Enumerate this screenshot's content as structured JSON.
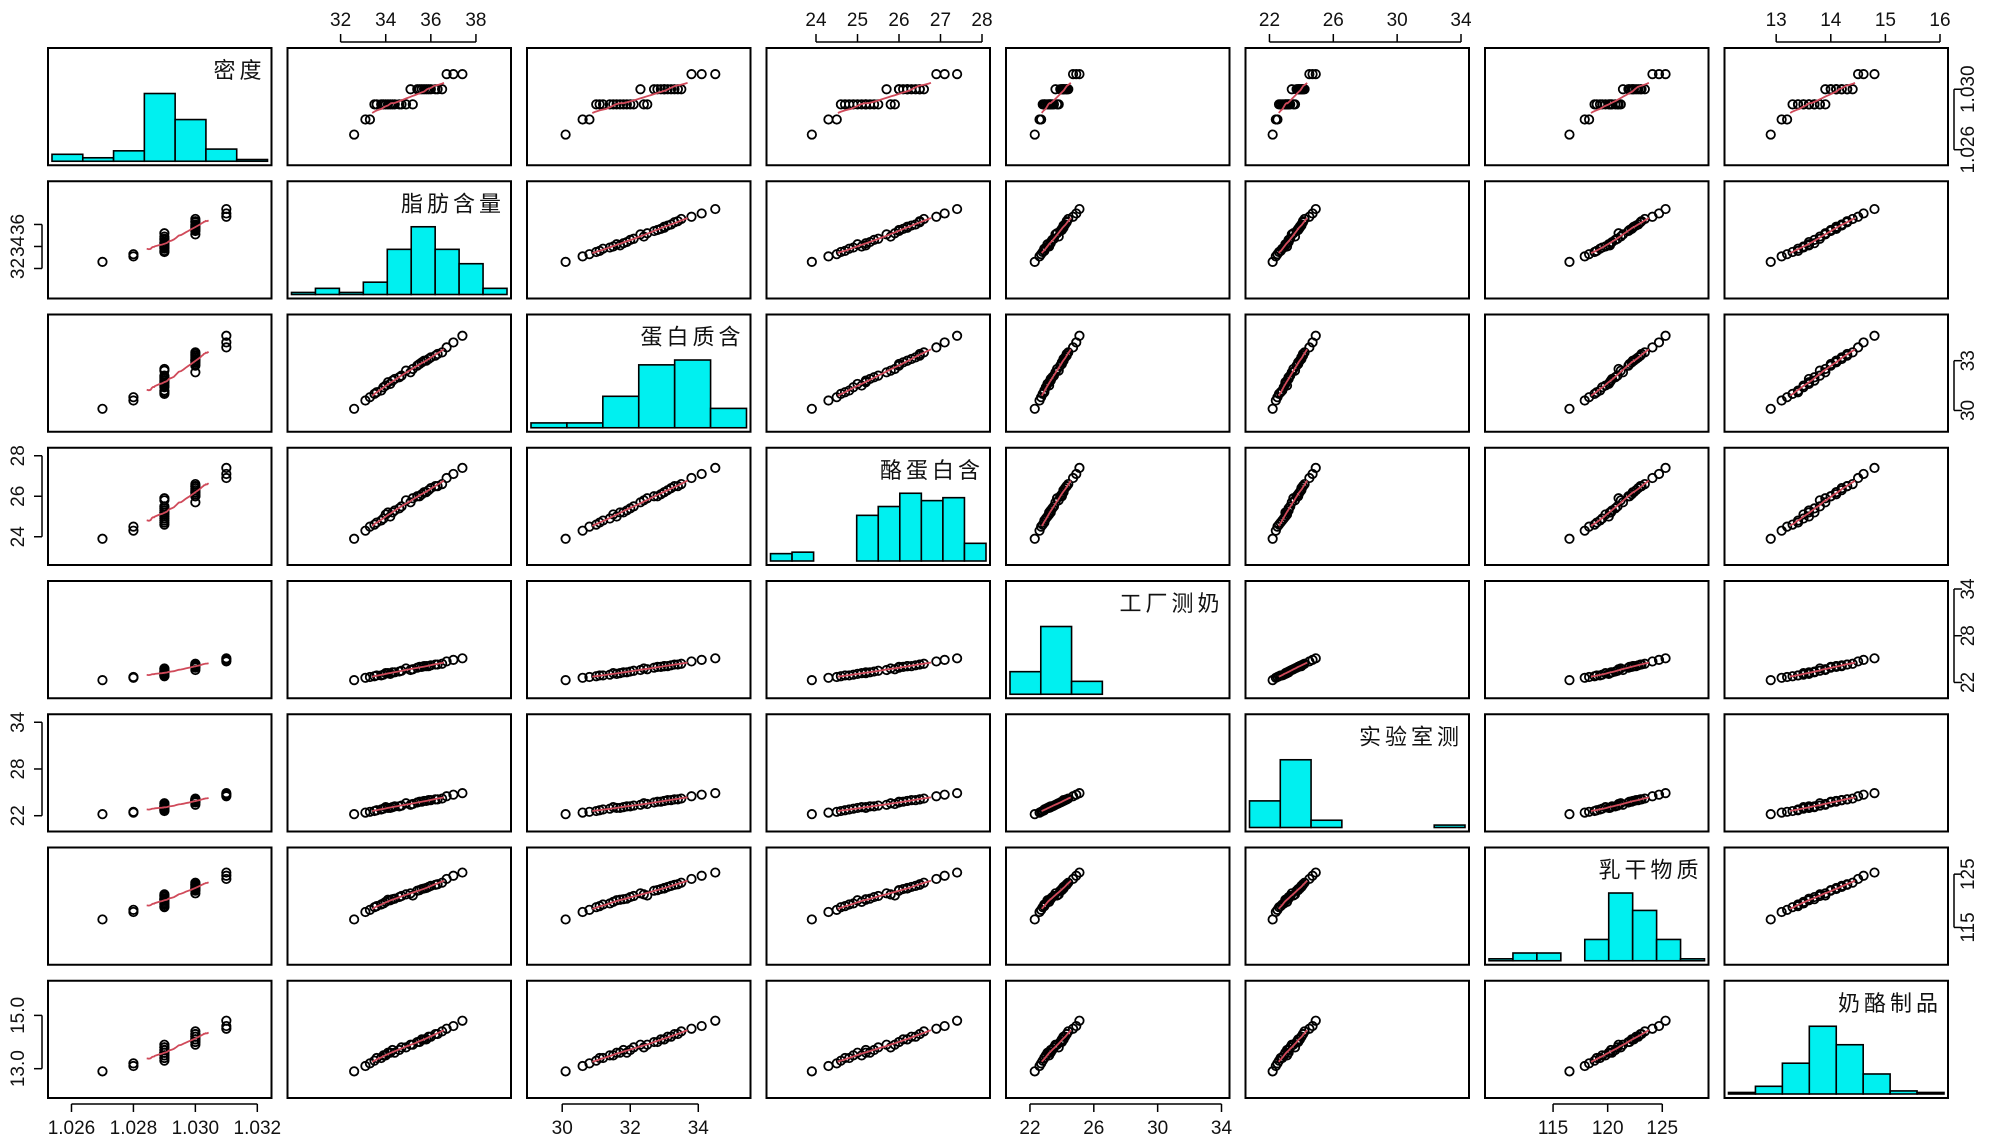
{
  "chart_data": {
    "type": "scatter",
    "title": "",
    "matrix_type": "scatterplot-matrix",
    "panel_layout": "8x8 grid; histograms on diagonal; scatter with lowess smooth off-diagonal",
    "variables": [
      {
        "label": "密度",
        "range": [
          1.0255,
          1.0322
        ]
      },
      {
        "label": "脂肪含量",
        "range": [
          30.0,
          39.2
        ]
      },
      {
        "label": "蛋白质含",
        "range": [
          29.2,
          35.3
        ]
      },
      {
        "label": "酪蛋白含",
        "range": [
          23.0,
          28.0
        ]
      },
      {
        "label": "工厂测奶",
        "range": [
          21.0,
          34.0
        ]
      },
      {
        "label": "实验室测",
        "range": [
          21.0,
          34.0
        ]
      },
      {
        "label": "乳干物质",
        "range": [
          109.5,
          128.5
        ]
      },
      {
        "label": "奶酪制品",
        "range": [
          12.2,
          16.0
        ]
      }
    ],
    "axes": {
      "top": [
        {
          "column": 2,
          "ticks": [
            32,
            34,
            36,
            38
          ]
        },
        {
          "column": 4,
          "ticks": [
            24,
            25,
            26,
            27,
            28
          ]
        },
        {
          "column": 6,
          "ticks": [
            22,
            26,
            30,
            34
          ]
        },
        {
          "column": 8,
          "ticks": [
            13.0,
            14.0,
            15.0,
            16.0
          ]
        }
      ],
      "bottom": [
        {
          "column": 1,
          "ticks": [
            1.026,
            1.028,
            1.03,
            1.032
          ]
        },
        {
          "column": 3,
          "ticks": [
            30,
            32,
            34
          ]
        },
        {
          "column": 5,
          "ticks": [
            22,
            26,
            30,
            34
          ]
        },
        {
          "column": 7,
          "ticks": [
            115,
            120,
            125
          ]
        }
      ],
      "left": [
        {
          "row": 2,
          "ticks": [
            32,
            34,
            36
          ]
        },
        {
          "row": 4,
          "ticks": [
            24,
            26,
            28
          ]
        },
        {
          "row": 6,
          "ticks": [
            22,
            28,
            34
          ]
        },
        {
          "row": 8,
          "ticks": [
            13.0,
            15.0
          ]
        }
      ],
      "right": [
        {
          "row": 1,
          "ticks": [
            1.026,
            1.03
          ]
        },
        {
          "row": 3,
          "ticks": [
            30,
            33
          ]
        },
        {
          "row": 5,
          "ticks": [
            22,
            28,
            34
          ]
        },
        {
          "row": 7,
          "ticks": [
            115,
            125
          ]
        }
      ]
    },
    "histograms": [
      {
        "variable": "密度",
        "bins": [
          1.0255,
          1.0265,
          1.0275,
          1.0285,
          1.0295,
          1.0305,
          1.0315,
          1.0325
        ],
        "counts": [
          4,
          2,
          6,
          39,
          24,
          7,
          1
        ]
      },
      {
        "variable": "脂肪含量",
        "bins": [
          30,
          31,
          32,
          33,
          34,
          35,
          36,
          37,
          38,
          39
        ],
        "counts": [
          1,
          3,
          1,
          6,
          22,
          33,
          22,
          15,
          3,
          3
        ]
      },
      {
        "variable": "蛋白质含",
        "bins": [
          29,
          30,
          31,
          32,
          33,
          34,
          35
        ],
        "counts": [
          2,
          2,
          13,
          26,
          28,
          8,
          2
        ]
      },
      {
        "variable": "酪蛋白含",
        "bins": [
          23.0,
          23.5,
          24.0,
          24.5,
          25.0,
          25.5,
          26.0,
          26.5,
          27.0,
          27.5,
          28.0
        ],
        "counts": [
          5,
          6,
          0,
          0,
          31,
          37,
          46,
          41,
          43,
          12,
          3
        ]
      },
      {
        "variable": "工厂测奶",
        "bins": [
          20,
          22,
          24,
          26,
          28,
          30,
          32,
          34
        ],
        "counts": [
          7,
          21,
          4,
          0,
          0,
          0,
          0
        ]
      },
      {
        "variable": "实验室测",
        "bins": [
          20,
          22,
          24,
          26,
          28,
          30,
          32,
          34
        ],
        "counts": [
          11,
          28,
          3,
          0,
          0,
          0,
          1
        ]
      },
      {
        "variable": "乳干物质",
        "bins": [
          110,
          112,
          114,
          116,
          118,
          120,
          122,
          124,
          126,
          128
        ],
        "counts": [
          1,
          4,
          4,
          0,
          11,
          35,
          26,
          11,
          1
        ]
      },
      {
        "variable": "奶酪制品",
        "bins": [
          12.0,
          12.5,
          13.0,
          13.5,
          14.0,
          14.5,
          15.0,
          15.5,
          16.0
        ],
        "counts": [
          1,
          5,
          20,
          44,
          32,
          13,
          2,
          1
        ]
      }
    ],
    "samples": [
      [
        1.029,
        34.2,
        31.6,
        25.0,
        23.1,
        23.0,
        120.1,
        13.6
      ],
      [
        1.03,
        35.1,
        32.3,
        25.7,
        23.6,
        23.4,
        121.4,
        13.9
      ],
      [
        1.029,
        33.8,
        31.2,
        24.8,
        22.9,
        22.8,
        119.3,
        13.4
      ],
      [
        1.03,
        35.9,
        33.1,
        26.3,
        24.1,
        24.0,
        122.6,
        14.2
      ],
      [
        1.029,
        34.6,
        32.0,
        25.4,
        23.4,
        23.2,
        120.7,
        13.7
      ],
      [
        1.031,
        36.7,
        33.8,
        26.9,
        24.7,
        24.5,
        124.1,
        14.5
      ],
      [
        1.028,
        33.1,
        30.6,
        24.3,
        22.6,
        22.4,
        117.9,
        13.1
      ],
      [
        1.03,
        35.4,
        32.7,
        26.0,
        23.9,
        23.7,
        121.9,
        14.0
      ],
      [
        1.029,
        34.9,
        32.4,
        25.8,
        23.8,
        23.6,
        121.2,
        13.8
      ],
      [
        1.03,
        36.2,
        33.3,
        26.5,
        24.3,
        24.1,
        123.0,
        14.3
      ],
      [
        1.029,
        33.5,
        31.0,
        24.6,
        22.8,
        22.6,
        118.8,
        13.3
      ],
      [
        1.03,
        35.6,
        32.9,
        26.1,
        24.0,
        23.8,
        122.2,
        14.1
      ],
      [
        1.029,
        34.0,
        31.5,
        25.1,
        23.2,
        23.1,
        119.8,
        13.5
      ],
      [
        1.031,
        37.4,
        34.5,
        27.4,
        25.1,
        24.9,
        125.3,
        14.8
      ],
      [
        1.029,
        35.2,
        32.5,
        25.9,
        23.7,
        23.5,
        121.0,
        13.9
      ],
      [
        1.03,
        36.5,
        33.5,
        26.6,
        24.4,
        24.2,
        123.4,
        14.4
      ],
      [
        1.027,
        32.6,
        30.1,
        23.9,
        22.3,
        22.2,
        116.5,
        12.9
      ],
      [
        1.029,
        34.4,
        31.9,
        25.3,
        23.3,
        23.2,
        120.4,
        13.6
      ],
      [
        1.03,
        35.8,
        33.0,
        26.2,
        24.1,
        23.9,
        122.4,
        14.1
      ],
      [
        1.029,
        33.9,
        31.4,
        24.9,
        23.0,
        22.9,
        119.5,
        13.5
      ],
      [
        1.03,
        36.0,
        33.2,
        26.4,
        24.2,
        24.0,
        122.8,
        14.2
      ],
      [
        1.029,
        34.7,
        32.1,
        25.5,
        23.5,
        23.3,
        120.9,
        13.8
      ],
      [
        1.031,
        37.0,
        34.1,
        27.1,
        24.9,
        24.7,
        124.7,
        14.6
      ],
      [
        1.028,
        33.3,
        30.8,
        24.5,
        22.7,
        22.5,
        118.3,
        13.2
      ],
      [
        1.03,
        35.5,
        32.8,
        26.0,
        24.0,
        23.8,
        122.0,
        14.0
      ],
      [
        1.029,
        34.1,
        31.7,
        25.2,
        23.2,
        23.0,
        120.2,
        13.6
      ],
      [
        1.03,
        36.3,
        33.4,
        26.5,
        24.3,
        24.1,
        123.1,
        14.3
      ],
      [
        1.029,
        33.6,
        31.1,
        24.7,
        22.9,
        22.7,
        119.0,
        13.4
      ],
      [
        1.03,
        35.7,
        33.0,
        26.2,
        24.1,
        23.9,
        122.3,
        14.1
      ],
      [
        1.029,
        34.3,
        31.8,
        25.2,
        23.3,
        23.1,
        120.3,
        13.7
      ]
    ],
    "smooth": "lowess (red line) in each off-diagonal panel"
  }
}
